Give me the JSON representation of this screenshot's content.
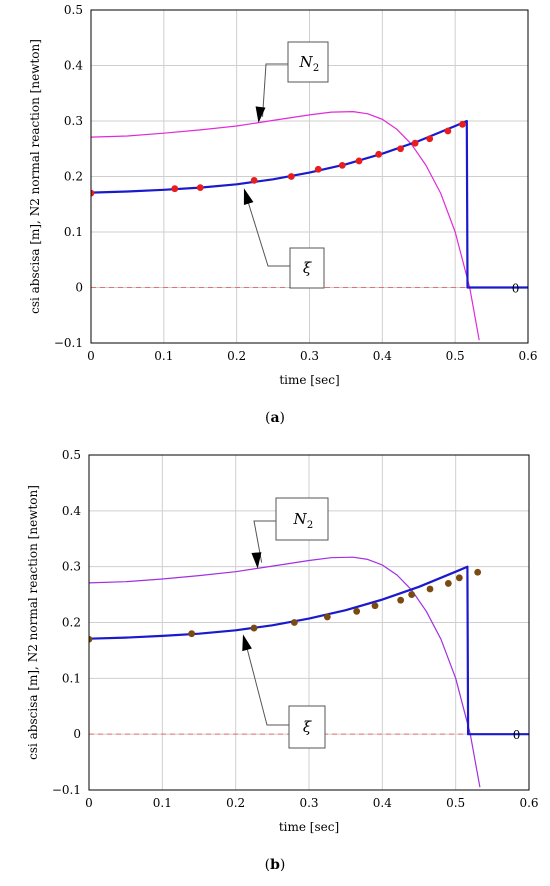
{
  "chart_data": [
    {
      "type": "line",
      "caption_letter": "a",
      "xlabel": "time [sec]",
      "ylabel": "csi abscisa [m], N2 normal reaction  [newton]",
      "xlim": [
        0,
        0.6
      ],
      "ylim": [
        -0.1,
        0.5
      ],
      "xticks": [
        "0",
        "0.1",
        "0.2",
        "0.3",
        "0.4",
        "0.5",
        "0.6"
      ],
      "yticks": [
        "−0.1",
        "0",
        "0.1",
        "0.2",
        "0.3",
        "0.4",
        "0.5"
      ],
      "grid": true,
      "colors": {
        "n2": "#e02ad8",
        "xi": "#1a1acc",
        "points": "#e81e1e",
        "zero": "#e87070"
      },
      "annotations": {
        "n2": "N",
        "n2_sub": "2",
        "xi": "ξ",
        "end_value": "0"
      },
      "series": [
        {
          "key": "n2",
          "x": [
            0,
            0.05,
            0.1,
            0.15,
            0.2,
            0.25,
            0.3,
            0.33,
            0.36,
            0.38,
            0.4,
            0.42,
            0.44,
            0.46,
            0.48,
            0.5,
            0.52,
            0.533
          ],
          "y": [
            0.271,
            0.273,
            0.278,
            0.284,
            0.291,
            0.301,
            0.311,
            0.316,
            0.317,
            0.313,
            0.303,
            0.285,
            0.258,
            0.22,
            0.17,
            0.1,
            0.0,
            -0.095
          ]
        },
        {
          "key": "xi",
          "x": [
            0,
            0.05,
            0.1,
            0.15,
            0.2,
            0.25,
            0.3,
            0.35,
            0.4,
            0.45,
            0.5,
            0.516,
            0.517,
            0.6
          ],
          "y": [
            0.171,
            0.173,
            0.176,
            0.18,
            0.186,
            0.195,
            0.207,
            0.222,
            0.241,
            0.264,
            0.291,
            0.3,
            0.0,
            0.0
          ]
        },
        {
          "key": "points",
          "x": [
            0,
            0.115,
            0.15,
            0.224,
            0.275,
            0.312,
            0.345,
            0.368,
            0.395,
            0.425,
            0.445,
            0.465,
            0.49,
            0.51
          ],
          "y": [
            0.17,
            0.178,
            0.18,
            0.193,
            0.2,
            0.213,
            0.22,
            0.228,
            0.24,
            0.25,
            0.26,
            0.268,
            0.282,
            0.294
          ]
        }
      ]
    },
    {
      "type": "line",
      "caption_letter": "b",
      "xlabel": "time [sec]",
      "ylabel": "csi abscisa [m], N2 normal reaction  [newton]",
      "xlim": [
        0,
        0.6
      ],
      "ylim": [
        -0.1,
        0.5
      ],
      "xticks": [
        "0",
        "0.1",
        "0.2",
        "0.3",
        "0.4",
        "0.5",
        "0.6"
      ],
      "yticks": [
        "−0.1",
        "0",
        "0.1",
        "0.2",
        "0.3",
        "0.4",
        "0.5"
      ],
      "grid": true,
      "colors": {
        "n2": "#a030e0",
        "xi": "#1a1acc",
        "points": "#7a4a10",
        "zero": "#e87070"
      },
      "annotations": {
        "n2": "N",
        "n2_sub": "2",
        "xi": "ξ",
        "end_value": "0"
      },
      "series": [
        {
          "key": "n2",
          "x": [
            0,
            0.05,
            0.1,
            0.15,
            0.2,
            0.25,
            0.3,
            0.33,
            0.36,
            0.38,
            0.4,
            0.42,
            0.44,
            0.46,
            0.48,
            0.5,
            0.52,
            0.533
          ],
          "y": [
            0.271,
            0.273,
            0.278,
            0.284,
            0.291,
            0.301,
            0.311,
            0.316,
            0.317,
            0.313,
            0.303,
            0.285,
            0.258,
            0.22,
            0.17,
            0.1,
            0.0,
            -0.095
          ]
        },
        {
          "key": "xi",
          "x": [
            0,
            0.05,
            0.1,
            0.15,
            0.2,
            0.25,
            0.3,
            0.35,
            0.4,
            0.45,
            0.5,
            0.516,
            0.517,
            0.6
          ],
          "y": [
            0.171,
            0.173,
            0.176,
            0.18,
            0.186,
            0.195,
            0.207,
            0.222,
            0.241,
            0.264,
            0.291,
            0.3,
            0.0,
            0.0
          ]
        },
        {
          "key": "points",
          "x": [
            0,
            0.14,
            0.225,
            0.28,
            0.325,
            0.365,
            0.39,
            0.425,
            0.44,
            0.465,
            0.49,
            0.505,
            0.53
          ],
          "y": [
            0.17,
            0.18,
            0.19,
            0.2,
            0.21,
            0.22,
            0.23,
            0.24,
            0.25,
            0.26,
            0.27,
            0.28,
            0.29
          ]
        }
      ]
    }
  ]
}
